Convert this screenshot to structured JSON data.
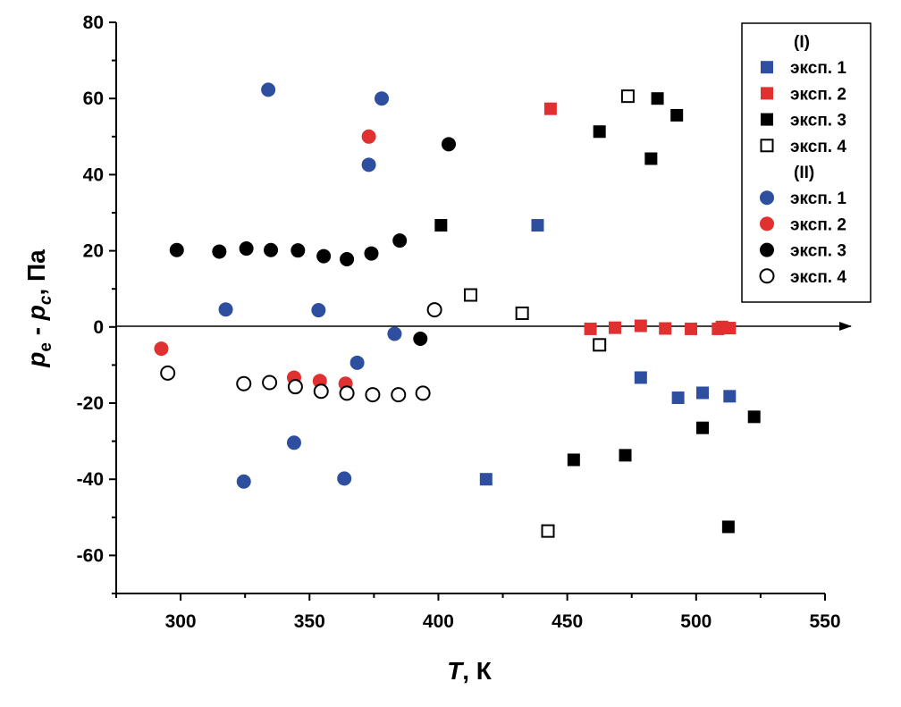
{
  "chart_data": {
    "type": "scatter",
    "xlabel": {
      "main": "T",
      "rest": ", К"
    },
    "ylabel": {
      "p": "p",
      "e": "e",
      "dash": " - ",
      "p2": "p",
      "c": "c",
      "rest": ", Па"
    },
    "xlim": [
      275,
      550
    ],
    "ylim": [
      -70,
      80
    ],
    "xticks": [
      300,
      350,
      400,
      450,
      500,
      550
    ],
    "yticks": [
      -60,
      -40,
      -20,
      0,
      20,
      40,
      60,
      80
    ],
    "grid": false,
    "legend_position": "top-right",
    "legend": [
      {
        "type": "header",
        "label": "(I)"
      },
      {
        "type": "series",
        "ref": 0
      },
      {
        "type": "series",
        "ref": 1
      },
      {
        "type": "series",
        "ref": 2
      },
      {
        "type": "series",
        "ref": 3
      },
      {
        "type": "header",
        "label": "(II)"
      },
      {
        "type": "series",
        "ref": 4
      },
      {
        "type": "series",
        "ref": 5
      },
      {
        "type": "series",
        "ref": 6
      },
      {
        "type": "series",
        "ref": 7
      }
    ],
    "series": [
      {
        "name": "эксп. 1",
        "marker": "square",
        "color": "#2e4fa0",
        "filled": true,
        "points": [
          [
            418.5,
            -40
          ],
          [
            438.5,
            26.7
          ],
          [
            478.5,
            -13.3
          ],
          [
            493,
            -18.6
          ],
          [
            502.5,
            -17.3
          ],
          [
            513,
            -18.2
          ]
        ]
      },
      {
        "name": "эксп. 2",
        "marker": "square",
        "color": "#e03030",
        "filled": true,
        "points": [
          [
            443.5,
            57.3
          ],
          [
            459,
            -0.5
          ],
          [
            468.5,
            -0.2
          ],
          [
            478.5,
            0.3
          ],
          [
            488,
            -0.4
          ],
          [
            498,
            -0.5
          ],
          [
            508.5,
            -0.5
          ],
          [
            510,
            0
          ],
          [
            513,
            -0.3
          ]
        ]
      },
      {
        "name": "эксп. 3",
        "marker": "square",
        "color": "#000000",
        "filled": true,
        "points": [
          [
            401,
            26.7
          ],
          [
            452.5,
            -34.9
          ],
          [
            462.5,
            51.3
          ],
          [
            472.5,
            -33.7
          ],
          [
            482.5,
            44.2
          ],
          [
            485,
            60
          ],
          [
            492.5,
            55.6
          ],
          [
            502.5,
            -26.5
          ],
          [
            512.5,
            -52.5
          ],
          [
            522.5,
            -23.6
          ]
        ]
      },
      {
        "name": "эксп. 4",
        "marker": "square",
        "color": "#000000",
        "filled": false,
        "points": [
          [
            412.5,
            8.4
          ],
          [
            432.5,
            3.6
          ],
          [
            442.5,
            -53.6
          ],
          [
            462.5,
            -4.7
          ],
          [
            473.5,
            60.6
          ]
        ]
      },
      {
        "name": "эксп. 1",
        "marker": "circle",
        "color": "#2e4fa0",
        "filled": true,
        "points": [
          [
            317.5,
            4.6
          ],
          [
            324.5,
            -40.6
          ],
          [
            334,
            62.3
          ],
          [
            344,
            -30.4
          ],
          [
            353.5,
            4.4
          ],
          [
            363.5,
            -39.8
          ],
          [
            368.5,
            -9.4
          ],
          [
            373,
            42.6
          ],
          [
            378,
            60
          ],
          [
            383,
            -1.8
          ]
        ]
      },
      {
        "name": "эксп. 2",
        "marker": "circle",
        "color": "#e03030",
        "filled": true,
        "points": [
          [
            292.5,
            -5.7
          ],
          [
            344,
            -13.3
          ],
          [
            354,
            -14.2
          ],
          [
            364,
            -14.9
          ],
          [
            373,
            50
          ]
        ]
      },
      {
        "name": "эксп. 3",
        "marker": "circle",
        "color": "#000000",
        "filled": true,
        "points": [
          [
            298.5,
            20.2
          ],
          [
            315,
            19.8
          ],
          [
            325.5,
            20.6
          ],
          [
            335,
            20.2
          ],
          [
            345.5,
            20.1
          ],
          [
            355.5,
            18.6
          ],
          [
            364.5,
            17.8
          ],
          [
            374,
            19.3
          ],
          [
            385,
            22.7
          ],
          [
            393,
            -3.1
          ],
          [
            404,
            48
          ]
        ]
      },
      {
        "name": "эксп. 4",
        "marker": "circle",
        "color": "#000000",
        "filled": false,
        "points": [
          [
            295,
            -12.1
          ],
          [
            324.5,
            -14.9
          ],
          [
            334.5,
            -14.6
          ],
          [
            344.5,
            -15.7
          ],
          [
            354.5,
            -16.9
          ],
          [
            364.5,
            -17.4
          ],
          [
            374.5,
            -17.8
          ],
          [
            384.5,
            -17.8
          ],
          [
            394,
            -17.4
          ],
          [
            398.5,
            4.5
          ]
        ]
      }
    ]
  }
}
